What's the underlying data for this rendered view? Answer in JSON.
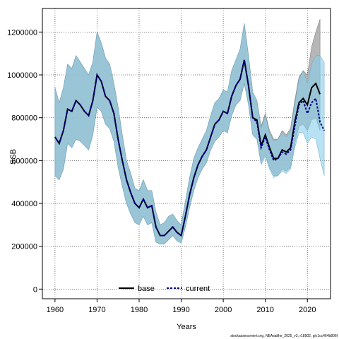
{
  "chart_data": {
    "type": "line",
    "title": "",
    "xlabel": "Years",
    "ylabel": "SSB",
    "xlim": [
      1957,
      2025.5
    ],
    "ylim": [
      -45000,
      1310000
    ],
    "x_ticks": [
      1960,
      1970,
      1980,
      1990,
      2000,
      2010,
      2020
    ],
    "y_ticks": [
      0,
      200000,
      400000,
      600000,
      800000,
      1000000,
      1200000
    ],
    "grid": true,
    "legend_position": "bottom-center",
    "colors": {
      "base_band": "#a9a9a9",
      "current_band": "#87ceeb",
      "overlap_band": "#9fc0d2",
      "base_line": "#000000",
      "current_line": "#00008b"
    },
    "x": [
      1960,
      1961,
      1962,
      1963,
      1964,
      1965,
      1966,
      1967,
      1968,
      1969,
      1970,
      1971,
      1972,
      1973,
      1974,
      1975,
      1976,
      1977,
      1978,
      1979,
      1980,
      1981,
      1982,
      1983,
      1984,
      1985,
      1986,
      1987,
      1988,
      1989,
      1990,
      1991,
      1992,
      1993,
      1994,
      1995,
      1996,
      1997,
      1998,
      1999,
      2000,
      2001,
      2002,
      2003,
      2004,
      2005,
      2006,
      2007,
      2008,
      2009,
      2010,
      2011,
      2012,
      2013,
      2014,
      2015,
      2016,
      2017,
      2018,
      2019,
      2020,
      2021,
      2022,
      2023,
      2024
    ],
    "series": [
      {
        "name": "base",
        "values": [
          710000,
          680000,
          740000,
          840000,
          830000,
          880000,
          860000,
          830000,
          810000,
          880000,
          1000000,
          970000,
          900000,
          880000,
          820000,
          700000,
          600000,
          510000,
          450000,
          400000,
          380000,
          420000,
          380000,
          390000,
          290000,
          250000,
          250000,
          270000,
          290000,
          265000,
          250000,
          340000,
          440000,
          520000,
          580000,
          620000,
          650000,
          710000,
          770000,
          790000,
          830000,
          820000,
          900000,
          950000,
          980000,
          1070000,
          950000,
          800000,
          790000,
          670000,
          720000,
          660000,
          610000,
          610000,
          650000,
          640000,
          660000,
          780000,
          870000,
          890000,
          860000,
          940000,
          960000,
          910000,
          null
        ],
        "lower": [
          530000,
          510000,
          560000,
          680000,
          660000,
          700000,
          690000,
          670000,
          650000,
          720000,
          850000,
          830000,
          770000,
          750000,
          690000,
          570000,
          480000,
          400000,
          350000,
          310000,
          300000,
          340000,
          300000,
          310000,
          220000,
          210000,
          210000,
          230000,
          250000,
          225000,
          215000,
          290000,
          380000,
          460000,
          520000,
          560000,
          590000,
          650000,
          690000,
          710000,
          740000,
          730000,
          810000,
          860000,
          880000,
          960000,
          860000,
          720000,
          700000,
          590000,
          630000,
          570000,
          530000,
          530000,
          560000,
          550000,
          570000,
          680000,
          760000,
          770000,
          740000,
          790000,
          800000,
          740000,
          null
        ],
        "upper": [
          940000,
          870000,
          940000,
          1050000,
          1030000,
          1090000,
          1060000,
          1030000,
          1000000,
          1060000,
          1200000,
          1150000,
          1080000,
          1050000,
          960000,
          850000,
          720000,
          600000,
          540000,
          470000,
          460000,
          510000,
          460000,
          460000,
          360000,
          300000,
          310000,
          340000,
          350000,
          320000,
          300000,
          410000,
          520000,
          610000,
          660000,
          700000,
          740000,
          810000,
          870000,
          890000,
          930000,
          920000,
          1020000,
          1070000,
          1120000,
          1240000,
          1090000,
          920000,
          880000,
          760000,
          820000,
          740000,
          700000,
          700000,
          740000,
          720000,
          750000,
          880000,
          990000,
          1020000,
          1000000,
          1130000,
          1200000,
          1260000,
          null
        ]
      },
      {
        "name": "current",
        "values": [
          710000,
          680000,
          740000,
          840000,
          830000,
          880000,
          860000,
          830000,
          810000,
          880000,
          1000000,
          970000,
          900000,
          880000,
          820000,
          700000,
          600000,
          510000,
          450000,
          400000,
          380000,
          420000,
          380000,
          390000,
          290000,
          250000,
          250000,
          270000,
          290000,
          265000,
          250000,
          340000,
          440000,
          520000,
          580000,
          620000,
          650000,
          710000,
          770000,
          790000,
          830000,
          820000,
          900000,
          950000,
          980000,
          1070000,
          950000,
          800000,
          780000,
          660000,
          710000,
          650000,
          600000,
          610000,
          640000,
          630000,
          650000,
          760000,
          860000,
          880000,
          820000,
          870000,
          890000,
          780000,
          740000
        ],
        "lower": [
          530000,
          510000,
          560000,
          680000,
          660000,
          700000,
          690000,
          670000,
          650000,
          720000,
          850000,
          830000,
          770000,
          750000,
          690000,
          570000,
          480000,
          400000,
          350000,
          310000,
          300000,
          340000,
          300000,
          310000,
          220000,
          210000,
          210000,
          230000,
          250000,
          225000,
          215000,
          290000,
          380000,
          460000,
          520000,
          560000,
          590000,
          650000,
          690000,
          710000,
          740000,
          730000,
          810000,
          860000,
          880000,
          960000,
          860000,
          720000,
          700000,
          580000,
          620000,
          560000,
          520000,
          530000,
          550000,
          540000,
          560000,
          660000,
          730000,
          730000,
          680000,
          710000,
          700000,
          610000,
          530000
        ],
        "upper": [
          940000,
          870000,
          940000,
          1050000,
          1030000,
          1090000,
          1060000,
          1030000,
          1000000,
          1060000,
          1200000,
          1150000,
          1080000,
          1050000,
          960000,
          850000,
          720000,
          600000,
          540000,
          470000,
          460000,
          510000,
          460000,
          460000,
          360000,
          300000,
          310000,
          340000,
          350000,
          320000,
          300000,
          410000,
          520000,
          610000,
          660000,
          700000,
          740000,
          810000,
          870000,
          890000,
          930000,
          920000,
          1020000,
          1070000,
          1120000,
          1240000,
          1090000,
          920000,
          880000,
          750000,
          810000,
          730000,
          690000,
          700000,
          730000,
          710000,
          740000,
          860000,
          980000,
          1020000,
          960000,
          1050000,
          1090000,
          1090000,
          1060000
        ]
      }
    ]
  },
  "footer": "stockassessment.org, NEAsalthe_2025_v3, r18902, git:1cc464b806f"
}
